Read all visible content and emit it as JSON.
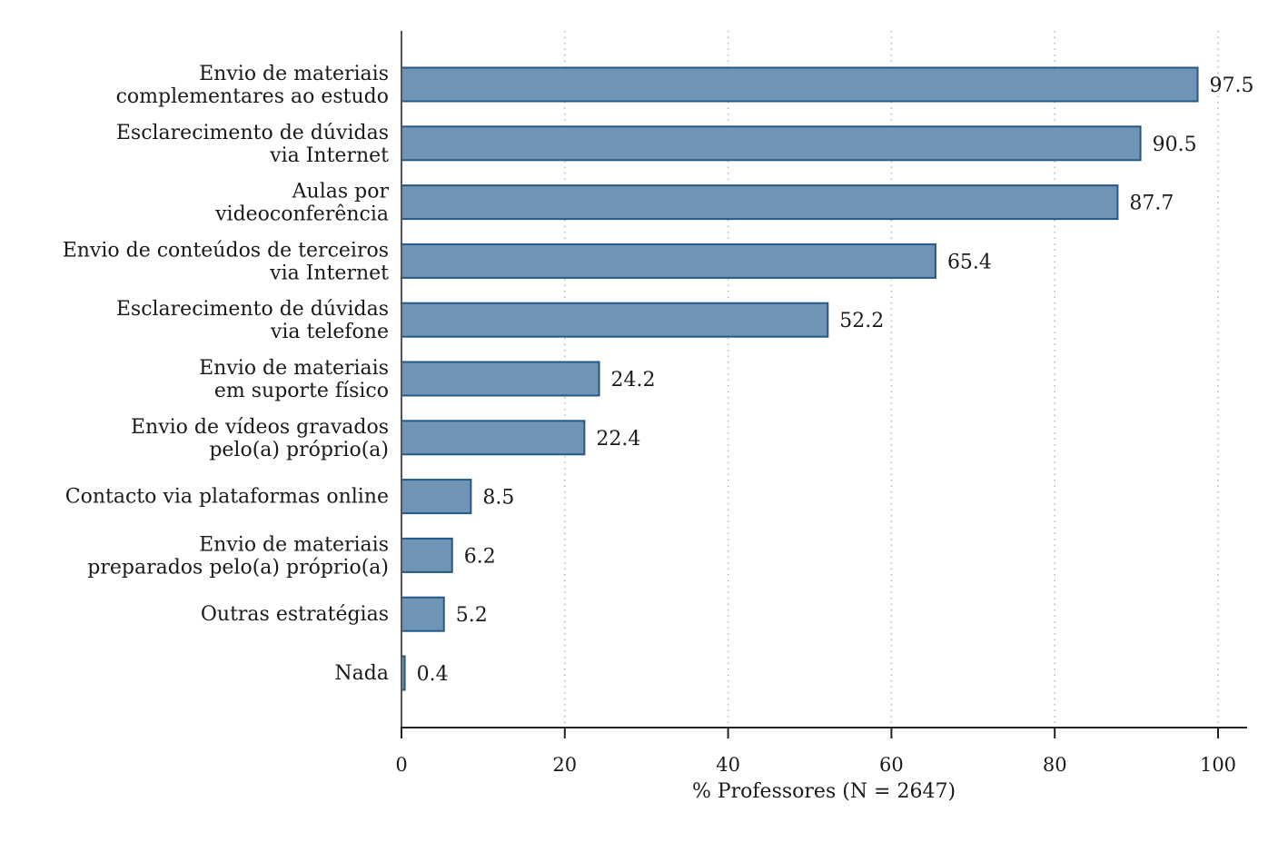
{
  "chart_data": {
    "type": "bar",
    "orientation": "horizontal",
    "categories": [
      [
        "Envio de materiais",
        "complementares ao estudo"
      ],
      [
        "Esclarecimento de dúvidas",
        "via Internet"
      ],
      [
        "Aulas por",
        "videoconferência"
      ],
      [
        "Envio de conteúdos de terceiros",
        "via Internet"
      ],
      [
        "Esclarecimento de dúvidas",
        "via telefone"
      ],
      [
        "Envio de materiais",
        "em suporte físico"
      ],
      [
        "Envio de vídeos gravados",
        "pelo(a) próprio(a)"
      ],
      [
        "Contacto via plataformas online"
      ],
      [
        "Envio de materiais",
        "preparados pelo(a) próprio(a)"
      ],
      [
        "Outras estratégias"
      ],
      [
        "Nada"
      ]
    ],
    "values": [
      97.5,
      90.5,
      87.7,
      65.4,
      52.2,
      24.2,
      22.4,
      8.5,
      6.2,
      5.2,
      0.4
    ],
    "value_labels": [
      "97.5",
      "90.5",
      "87.7",
      "65.4",
      "52.2",
      "24.2",
      "22.4",
      "8.5",
      "6.2",
      "5.2",
      "0.4"
    ],
    "xlim": [
      0,
      100
    ],
    "xticks": [
      0,
      20,
      40,
      60,
      80,
      100
    ],
    "xtick_labels": [
      "0",
      "20",
      "40",
      "60",
      "80",
      "100"
    ],
    "xlabel": "% Professores (N = 2647)",
    "ylabel": "",
    "title": "",
    "grid": "vertical dotted",
    "legend": "none",
    "colors": {
      "bar_fill": "#6f94b5",
      "bar_edge": "#245987"
    }
  }
}
